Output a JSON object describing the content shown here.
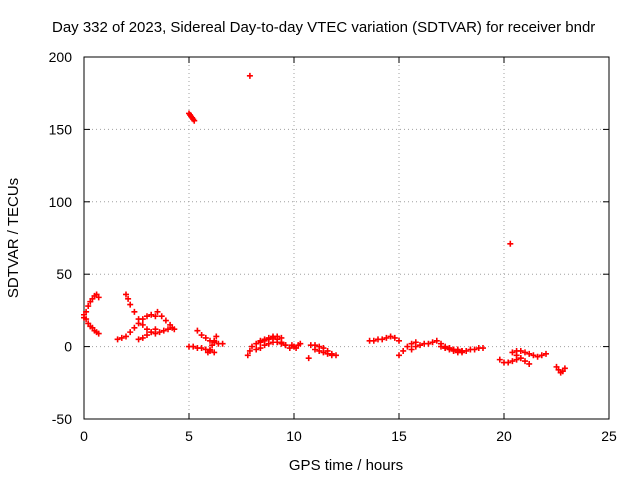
{
  "chart_data": {
    "type": "scatter",
    "title": "Day 332 of 2023, Sidereal Day-to-day VTEC variation (SDTVAR) for receiver bndr",
    "xlabel": "GPS time / hours",
    "ylabel": "SDTVAR / TECUs",
    "xlim": [
      0,
      25
    ],
    "ylim": [
      -50,
      200
    ],
    "xticks": [
      0,
      5,
      10,
      15,
      20,
      25
    ],
    "yticks": [
      -50,
      0,
      50,
      100,
      150,
      200
    ],
    "xtick_labels": [
      "0",
      "5",
      "10",
      "15",
      "20",
      "25"
    ],
    "ytick_labels": [
      "-50",
      "0",
      "50",
      "100",
      "150",
      "200"
    ],
    "grid": true,
    "legend": "none",
    "marker": "plus",
    "color": "#ff0000",
    "series": [
      {
        "name": "arc-1",
        "x": [
          0.0,
          0.1,
          0.2,
          0.3,
          0.4,
          0.5,
          0.6,
          0.7
        ],
        "y": [
          20,
          24,
          28,
          31,
          33,
          35,
          36,
          34
        ]
      },
      {
        "name": "arc-2",
        "x": [
          0.0,
          0.1,
          0.2,
          0.3,
          0.4,
          0.5,
          0.6,
          0.7
        ],
        "y": [
          22,
          19,
          16,
          14,
          13,
          11,
          10,
          9
        ]
      },
      {
        "name": "arc-3",
        "x": [
          1.6,
          1.8,
          2.0,
          2.2,
          2.4,
          2.6,
          2.8,
          3.0,
          3.2,
          3.4
        ],
        "y": [
          5,
          6,
          7,
          10,
          13,
          16,
          19,
          21,
          22,
          21
        ]
      },
      {
        "name": "arc-4",
        "x": [
          2.0,
          2.1,
          2.2,
          2.4,
          2.6,
          2.8,
          3.0,
          3.2,
          3.4,
          3.6,
          3.8,
          4.0,
          4.2
        ],
        "y": [
          36,
          33,
          29,
          24,
          19,
          15,
          12,
          10,
          9,
          10,
          11,
          12,
          13
        ]
      },
      {
        "name": "arc-5",
        "x": [
          2.6,
          2.8,
          3.0,
          3.2,
          3.4
        ],
        "y": [
          5,
          6,
          8,
          10,
          12
        ]
      },
      {
        "name": "arc-6",
        "x": [
          3.5,
          3.7,
          3.9,
          4.1,
          4.3
        ],
        "y": [
          24,
          21,
          18,
          15,
          12
        ]
      },
      {
        "name": "arc-7",
        "x": [
          5.0,
          5.05,
          5.1,
          5.15,
          5.2,
          5.25
        ],
        "y": [
          161,
          160,
          159,
          158,
          157,
          156
        ]
      },
      {
        "name": "arc-8",
        "x": [
          5.0,
          5.2,
          5.4,
          5.6,
          5.8,
          6.0,
          6.2
        ],
        "y": [
          0,
          0,
          -1,
          -1,
          -2,
          -3,
          -4
        ]
      },
      {
        "name": "arc-9",
        "x": [
          5.4,
          5.6,
          5.8,
          6.0,
          6.2,
          6.4,
          6.6
        ],
        "y": [
          11,
          8,
          6,
          4,
          3,
          2,
          2
        ]
      },
      {
        "name": "arc-10",
        "x": [
          5.9,
          6.0,
          6.1,
          6.2,
          6.3
        ],
        "y": [
          -4,
          -2,
          1,
          4,
          7
        ]
      },
      {
        "name": "point-1",
        "x": [
          7.9
        ],
        "y": [
          187
        ]
      },
      {
        "name": "arc-11",
        "x": [
          7.8,
          7.9,
          8.0,
          8.2,
          8.4,
          8.6,
          8.8,
          9.0,
          9.2,
          9.4
        ],
        "y": [
          -6,
          -3,
          0,
          2,
          4,
          5,
          6,
          7,
          7,
          6
        ]
      },
      {
        "name": "arc-12",
        "x": [
          8.2,
          8.4,
          8.6,
          8.8,
          9.0,
          9.2,
          9.4,
          9.6
        ],
        "y": [
          -2,
          -1,
          1,
          2,
          3,
          3,
          2,
          1
        ]
      },
      {
        "name": "arc-13",
        "x": [
          8.4,
          8.6,
          8.8,
          9.0,
          9.2,
          9.4,
          9.6,
          9.8
        ],
        "y": [
          3,
          4,
          5,
          6,
          5,
          3,
          1,
          -1
        ]
      },
      {
        "name": "arc-14",
        "x": [
          9.9,
          10.0,
          10.1,
          10.2,
          10.3
        ],
        "y": [
          1,
          0,
          -1,
          1,
          2
        ]
      },
      {
        "name": "point-2",
        "x": [
          10.7
        ],
        "y": [
          -8
        ]
      },
      {
        "name": "arc-15",
        "x": [
          10.8,
          11.0,
          11.2,
          11.4,
          11.6,
          11.8,
          12.0
        ],
        "y": [
          1,
          1,
          0,
          -1,
          -3,
          -5,
          -6
        ]
      },
      {
        "name": "arc-16",
        "x": [
          11.0,
          11.2,
          11.4,
          11.6,
          11.8
        ],
        "y": [
          -2,
          -3,
          -4,
          -5,
          -6
        ]
      },
      {
        "name": "arc-17",
        "x": [
          13.6,
          13.8,
          14.0,
          14.2,
          14.4,
          14.6,
          14.8,
          15.0
        ],
        "y": [
          4,
          4,
          5,
          5,
          6,
          7,
          6,
          4
        ]
      },
      {
        "name": "arc-18",
        "x": [
          15.0,
          15.2,
          15.4,
          15.6,
          15.8
        ],
        "y": [
          -6,
          -3,
          0,
          2,
          3
        ]
      },
      {
        "name": "arc-19",
        "x": [
          15.6,
          15.8,
          16.0,
          16.2,
          16.4,
          16.6
        ],
        "y": [
          -2,
          0,
          1,
          2,
          2,
          3
        ]
      },
      {
        "name": "arc-20",
        "x": [
          16.8,
          17.0,
          17.2,
          17.4,
          17.6,
          17.8,
          18.0
        ],
        "y": [
          4,
          2,
          0,
          -1,
          -2,
          -3,
          -3
        ]
      },
      {
        "name": "arc-21",
        "x": [
          17.2,
          17.4,
          17.6,
          17.8,
          18.0,
          18.2,
          18.4,
          18.6,
          18.8,
          19.0
        ],
        "y": [
          -1,
          -2,
          -3,
          -4,
          -4,
          -3,
          -2,
          -2,
          -1,
          -1
        ]
      },
      {
        "name": "arc-22",
        "x": [
          17.0,
          17.2,
          17.4,
          17.6,
          17.8,
          18.0
        ],
        "y": [
          0,
          -1,
          -1,
          -2,
          -2,
          -3
        ]
      },
      {
        "name": "point-3",
        "x": [
          20.3
        ],
        "y": [
          71
        ]
      },
      {
        "name": "arc-23",
        "x": [
          19.8,
          20.0,
          20.2,
          20.4,
          20.6,
          20.8
        ],
        "y": [
          -9,
          -11,
          -11,
          -10,
          -9,
          -8
        ]
      },
      {
        "name": "arc-24",
        "x": [
          20.4,
          20.6,
          20.8,
          21.0,
          21.2
        ],
        "y": [
          -4,
          -6,
          -8,
          -10,
          -12
        ]
      },
      {
        "name": "arc-25",
        "x": [
          20.6,
          20.8,
          21.0,
          21.2,
          21.4,
          21.6,
          21.8,
          22.0
        ],
        "y": [
          -3,
          -3,
          -4,
          -5,
          -6,
          -7,
          -6,
          -5
        ]
      },
      {
        "name": "arc-26",
        "x": [
          22.5,
          22.6,
          22.7,
          22.8,
          22.9
        ],
        "y": [
          -14,
          -16,
          -18,
          -17,
          -15
        ]
      }
    ]
  }
}
